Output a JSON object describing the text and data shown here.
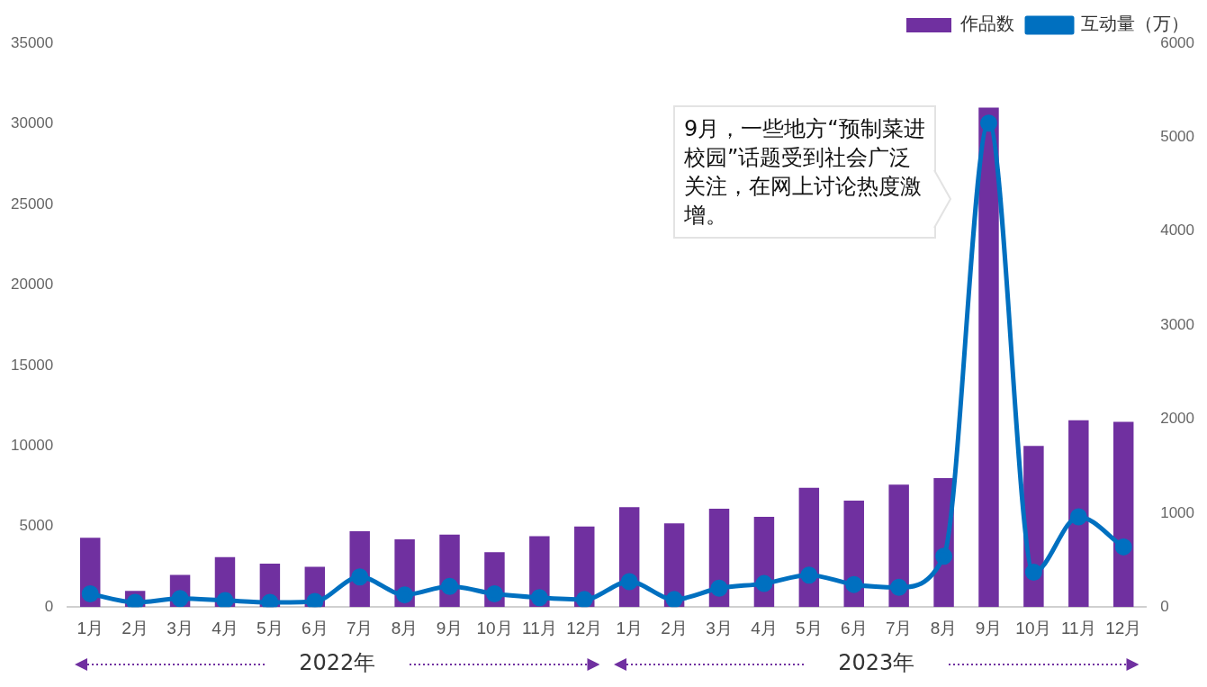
{
  "chart_data": {
    "type": "bar",
    "categories": [
      "1月",
      "2月",
      "3月",
      "4月",
      "5月",
      "6月",
      "7月",
      "8月",
      "9月",
      "10月",
      "11月",
      "12月",
      "1月",
      "2月",
      "3月",
      "4月",
      "5月",
      "6月",
      "7月",
      "8月",
      "9月",
      "10月",
      "11月",
      "12月"
    ],
    "series": [
      {
        "name": "作品数",
        "color": "#7030a0",
        "values": [
          4300,
          1000,
          2000,
          3100,
          2700,
          2500,
          4700,
          4200,
          4500,
          3400,
          4400,
          5000,
          6200,
          5200,
          6100,
          5600,
          7400,
          6600,
          7600,
          8000,
          31000,
          10000,
          11600,
          11500
        ]
      },
      {
        "name": "互动量（万）",
        "type": "line",
        "axis": "y2",
        "color": "#0070c0",
        "values": [
          140,
          50,
          90,
          70,
          50,
          60,
          320,
          130,
          220,
          140,
          100,
          80,
          270,
          80,
          200,
          250,
          340,
          240,
          210,
          540,
          5150,
          370,
          960,
          640
        ]
      }
    ],
    "ylim": [
      0,
      35000
    ],
    "yticks": [
      0,
      5000,
      10000,
      15000,
      20000,
      25000,
      30000,
      35000
    ],
    "y2lim": [
      0,
      6000
    ],
    "y2ticks": [
      0,
      1000,
      2000,
      3000,
      4000,
      5000,
      6000
    ],
    "grid": false,
    "legend": "top right",
    "marker": "circle",
    "line_style": "solid",
    "annotations": [
      "9月，一些地方“预制菜进校园”话题受到社会广泛关注，在网上讨论热度激增。",
      "2022年",
      "2023年"
    ]
  }
}
